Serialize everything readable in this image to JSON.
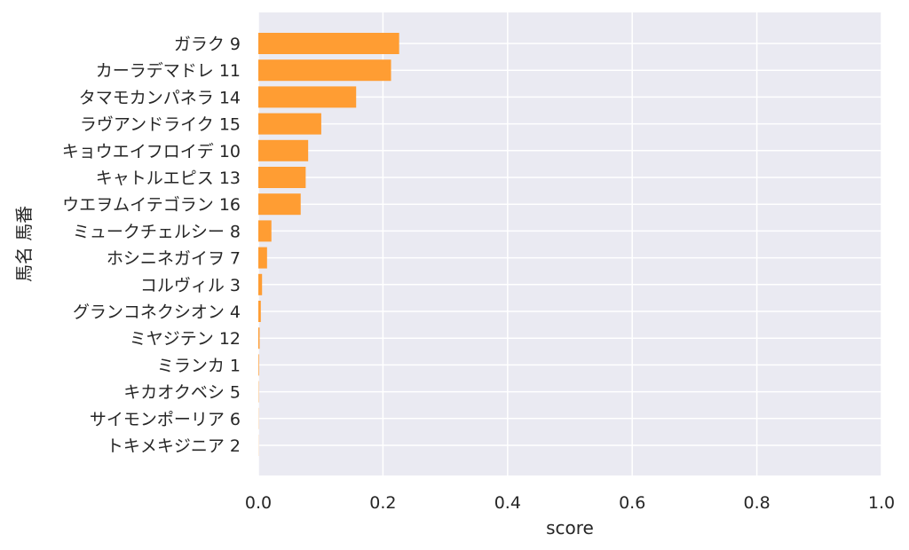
{
  "chart_data": {
    "type": "bar",
    "orientation": "horizontal",
    "xlabel": "score",
    "ylabel": "馬名 馬番",
    "xlim": [
      0,
      1.0
    ],
    "xticks": [
      "0.0",
      "0.2",
      "0.4",
      "0.6",
      "0.8",
      "1.0"
    ],
    "grid": true,
    "bar_color": "#ff9d33",
    "background_color": "#eaeaf2",
    "categories": [
      "ガラク 9",
      "カーラデマドレ 11",
      "タマモカンパネラ 14",
      "ラヴアンドライク 15",
      "キョウエイフロイデ 10",
      "キャトルエピス 13",
      "ウエヲムイテゴラン 16",
      "ミュークチェルシー 8",
      "ホシニネガイヲ 7",
      "コルヴィル 3",
      "グランコネクシオン 4",
      "ミヤジテン 12",
      "ミランカ 1",
      "キカオクベシ 5",
      "サイモンポーリア 6",
      "トキメキジニア 2"
    ],
    "values": [
      0.226,
      0.213,
      0.157,
      0.101,
      0.08,
      0.076,
      0.068,
      0.021,
      0.014,
      0.006,
      0.004,
      0.002,
      0.001,
      0.0005,
      0.0003,
      0.0002
    ]
  }
}
